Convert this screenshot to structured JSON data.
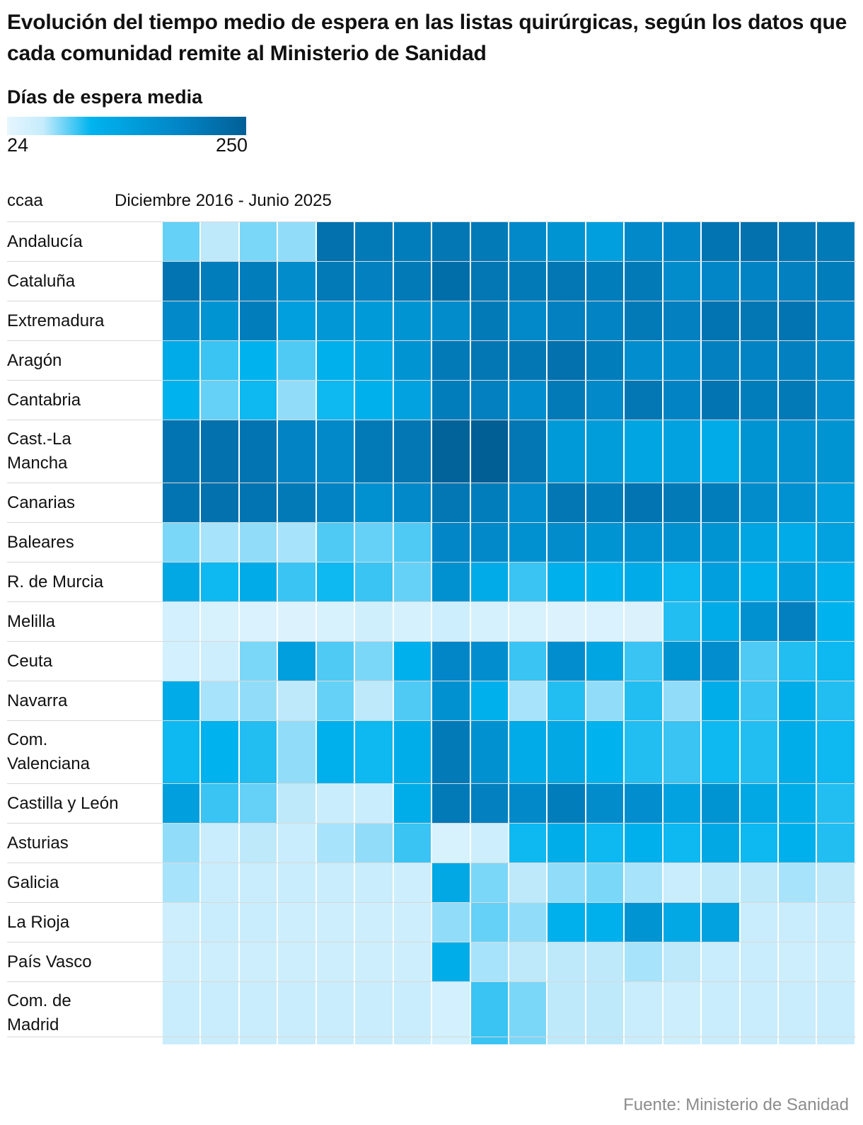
{
  "title": "Evolución del tiempo medio de espera en las listas quirúrgicas, según los datos que cada comunidad remite al Ministerio de Sanidad",
  "legend": {
    "title": "Días de espera media",
    "min": "24",
    "max": "250",
    "color_min": "#e6f6fe",
    "color_mid": "#00b4ef",
    "color_max": "#025f96"
  },
  "column_header": "ccaa",
  "period_header": "Diciembre 2016 - Junio 2025",
  "source": "Fuente: Ministerio de Sanidad",
  "chart_data": {
    "type": "heatmap",
    "x_range": "Diciembre 2016 - Junio 2025",
    "color_range": [
      24,
      250
    ],
    "rows": [
      {
        "label": "Andalucía",
        "values": [
          80,
          60,
          75,
          70,
          220,
          205,
          200,
          210,
          205,
          180,
          160,
          140,
          180,
          185,
          215,
          220,
          210,
          205
        ]
      },
      {
        "label": "Cataluña",
        "values": [
          215,
          200,
          200,
          175,
          205,
          195,
          205,
          225,
          210,
          205,
          210,
          200,
          205,
          175,
          185,
          190,
          195,
          200
        ]
      },
      {
        "label": "Extremadura",
        "values": [
          180,
          160,
          200,
          140,
          155,
          150,
          160,
          175,
          205,
          180,
          195,
          190,
          205,
          195,
          215,
          210,
          215,
          185
        ]
      },
      {
        "label": "Aragón",
        "values": [
          120,
          90,
          105,
          85,
          110,
          125,
          160,
          205,
          210,
          210,
          220,
          200,
          170,
          170,
          195,
          190,
          195,
          175
        ]
      },
      {
        "label": "Cantabria",
        "values": [
          105,
          80,
          100,
          70,
          100,
          110,
          135,
          200,
          195,
          170,
          205,
          180,
          210,
          190,
          215,
          200,
          205,
          170
        ]
      },
      {
        "label": "Cast.-La Mancha",
        "values": [
          215,
          220,
          215,
          190,
          180,
          205,
          210,
          245,
          250,
          210,
          150,
          145,
          130,
          135,
          120,
          160,
          165,
          160
        ]
      },
      {
        "label": "Canarias",
        "values": [
          215,
          220,
          215,
          205,
          190,
          165,
          180,
          210,
          200,
          170,
          210,
          200,
          215,
          205,
          200,
          175,
          165,
          140
        ]
      },
      {
        "label": "Baleares",
        "values": [
          75,
          65,
          70,
          65,
          85,
          80,
          85,
          185,
          180,
          165,
          175,
          160,
          165,
          165,
          160,
          130,
          120,
          135
        ]
      },
      {
        "label": "R. de Murcia",
        "values": [
          125,
          100,
          120,
          90,
          100,
          90,
          80,
          165,
          120,
          90,
          110,
          105,
          120,
          100,
          140,
          110,
          140,
          110
        ]
      },
      {
        "label": "Melilla",
        "values": [
          45,
          40,
          38,
          35,
          40,
          48,
          42,
          50,
          42,
          40,
          35,
          38,
          36,
          95,
          120,
          165,
          195,
          105
        ]
      },
      {
        "label": "Ceuta",
        "values": [
          45,
          50,
          75,
          140,
          85,
          75,
          110,
          185,
          170,
          90,
          170,
          130,
          90,
          160,
          170,
          85,
          95,
          100
        ]
      },
      {
        "label": "Navarra",
        "values": [
          120,
          65,
          70,
          60,
          80,
          60,
          85,
          165,
          110,
          65,
          95,
          70,
          95,
          70,
          115,
          90,
          115,
          95
        ]
      },
      {
        "label": "Com. Valenciana",
        "values": [
          100,
          105,
          95,
          70,
          110,
          100,
          115,
          205,
          165,
          120,
          125,
          105,
          95,
          90,
          100,
          95,
          115,
          100
        ]
      },
      {
        "label": "Castilla y León",
        "values": [
          140,
          90,
          80,
          60,
          55,
          55,
          115,
          205,
          195,
          180,
          200,
          175,
          170,
          135,
          160,
          125,
          115,
          95
        ]
      },
      {
        "label": "Asturias",
        "values": [
          70,
          55,
          60,
          55,
          65,
          70,
          90,
          40,
          50,
          100,
          115,
          100,
          110,
          100,
          125,
          100,
          110,
          95
        ]
      },
      {
        "label": "Galicia",
        "values": [
          65,
          55,
          55,
          55,
          55,
          55,
          50,
          125,
          75,
          60,
          70,
          75,
          65,
          55,
          60,
          60,
          65,
          60
        ]
      },
      {
        "label": "La Rioja",
        "values": [
          50,
          55,
          55,
          50,
          50,
          50,
          50,
          70,
          80,
          70,
          110,
          110,
          160,
          125,
          135,
          55,
          55,
          55
        ]
      },
      {
        "label": "País Vasco",
        "values": [
          50,
          50,
          50,
          50,
          50,
          50,
          50,
          115,
          65,
          60,
          60,
          60,
          65,
          60,
          55,
          55,
          50,
          50
        ]
      },
      {
        "label": "Com. de Madrid",
        "values": [
          55,
          55,
          55,
          55,
          55,
          55,
          55,
          45,
          90,
          75,
          60,
          60,
          55,
          50,
          55,
          55,
          55,
          55
        ]
      }
    ]
  }
}
